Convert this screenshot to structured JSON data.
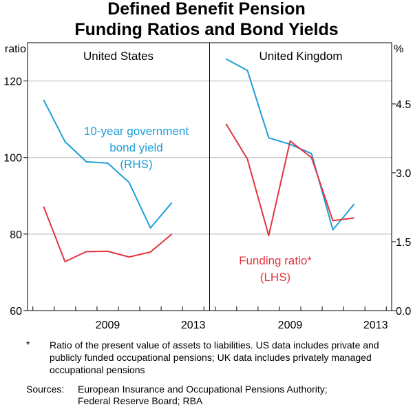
{
  "title": [
    "Defined Benefit Pension",
    "Funding Ratios and Bond Yields"
  ],
  "chart_data": {
    "type": "line",
    "title": "Defined Benefit Pension Funding Ratios and Bond Yields",
    "left_axis": {
      "label": "ratio",
      "min": 60,
      "max": 130,
      "ticks": [
        60,
        80,
        100,
        120
      ],
      "tick_labels": [
        "60",
        "80",
        "100",
        "120"
      ]
    },
    "right_axis": {
      "label": "%",
      "min": 0.0,
      "max": 5.833,
      "ticks": [
        0.0,
        1.5,
        3.0,
        4.5
      ],
      "tick_labels": [
        "0.0",
        "1.5",
        "3.0",
        "4.5"
      ]
    },
    "x_range": [
      2005.75,
      2014.25
    ],
    "x_tick_labels": [
      {
        "x": 2009,
        "label": "2009"
      },
      {
        "x": 2013,
        "label": "2013"
      }
    ],
    "panels": [
      {
        "name": "United States",
        "series": [
          {
            "name": "10-year government bond yield",
            "axis": "right",
            "color": "#1a9fd9",
            "x": [
              2006.5,
              2007.5,
              2008.5,
              2009.5,
              2010.5,
              2011.5,
              2012.5
            ],
            "y": [
              4.59,
              3.68,
              3.24,
              3.21,
              2.79,
              1.8,
              2.35
            ]
          },
          {
            "name": "Funding ratio",
            "axis": "left",
            "color": "#e2343d",
            "x": [
              2006.5,
              2007.5,
              2008.5,
              2009.5,
              2010.5,
              2011.5,
              2012.5
            ],
            "y": [
              87.2,
              72.8,
              75.4,
              75.5,
              74.0,
              75.3,
              80.0
            ]
          }
        ]
      },
      {
        "name": "United Kingdom",
        "series": [
          {
            "name": "10-year government bond yield",
            "axis": "right",
            "color": "#1a9fd9",
            "x": [
              2006.5,
              2007.5,
              2008.5,
              2009.5,
              2010.5,
              2011.5,
              2012.5
            ],
            "y": [
              5.48,
              5.23,
              3.76,
              3.62,
              3.42,
              1.76,
              2.32
            ]
          },
          {
            "name": "Funding ratio",
            "axis": "left",
            "color": "#e2343d",
            "x": [
              2006.5,
              2007.5,
              2008.5,
              2009.5,
              2010.5,
              2011.5,
              2012.5
            ],
            "y": [
              108.8,
              99.6,
              79.6,
              104.3,
              100.0,
              83.5,
              84.2
            ]
          }
        ]
      }
    ],
    "annotations": [
      {
        "panel": "United States",
        "lines": [
          "10-year government",
          "bond yield",
          "(RHS)"
        ],
        "color": "#1a9fd9"
      },
      {
        "panel": "United Kingdom",
        "lines": [
          "Funding ratio*",
          "(LHS)"
        ],
        "color": "#e2343d"
      }
    ]
  },
  "notes": {
    "mark": "*",
    "text": "Ratio of the present value of assets to liabilities. US data includes private and publicly funded occupational pensions; UK data includes privately managed occupational pensions"
  },
  "sources": {
    "label": "Sources:",
    "text_lines": [
      "European Insurance and Occupational Pensions Authority;",
      "Federal Reserve Board; RBA"
    ]
  },
  "colors": {
    "bond_yield": "#1a9fd9",
    "funding_ratio": "#e2343d",
    "grid": "#b3b3b3"
  }
}
